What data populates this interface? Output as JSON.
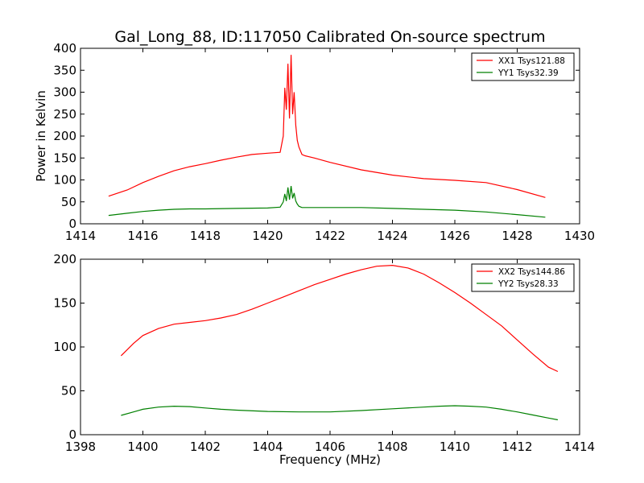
{
  "figure": {
    "title": "Gal_Long_88, ID:117050 Calibrated On-source spectrum",
    "ylabel": "Power in Kelvin",
    "xlabel": "Frequency (MHz)"
  },
  "chart_data": [
    {
      "type": "line",
      "title": "Gal_Long_88, ID:117050 Calibrated On-source spectrum",
      "xlabel": "",
      "ylabel": "Power in Kelvin",
      "xlim": [
        1414,
        1430
      ],
      "ylim": [
        0,
        400
      ],
      "xticks": [
        1414,
        1416,
        1418,
        1420,
        1422,
        1424,
        1426,
        1428,
        1430
      ],
      "yticks": [
        0,
        50,
        100,
        150,
        200,
        250,
        300,
        350,
        400
      ],
      "grid": false,
      "legend": "top-right",
      "series": [
        {
          "name": "XX1 Tsys121.88",
          "color": "#ff0000",
          "x": [
            1414.9,
            1415.5,
            1416.0,
            1416.5,
            1417.0,
            1417.5,
            1418.0,
            1418.5,
            1419.0,
            1419.5,
            1420.0,
            1420.4,
            1420.5,
            1420.55,
            1420.6,
            1420.65,
            1420.7,
            1420.75,
            1420.8,
            1420.85,
            1420.9,
            1420.95,
            1421.0,
            1421.1,
            1421.2,
            1421.5,
            1422.0,
            1423.0,
            1424.0,
            1425.0,
            1426.0,
            1427.0,
            1428.0,
            1428.9
          ],
          "values": [
            63,
            77,
            94,
            108,
            121,
            130,
            137,
            145,
            152,
            158,
            161,
            163,
            200,
            310,
            260,
            365,
            240,
            385,
            250,
            300,
            225,
            190,
            175,
            158,
            155,
            150,
            140,
            123,
            111,
            103,
            99,
            94,
            78,
            60
          ]
        },
        {
          "name": "YY1 Tsys32.39",
          "color": "#008000",
          "x": [
            1414.9,
            1415.5,
            1416.0,
            1416.5,
            1417.0,
            1417.5,
            1418.0,
            1419.0,
            1420.0,
            1420.4,
            1420.5,
            1420.55,
            1420.6,
            1420.65,
            1420.7,
            1420.75,
            1420.8,
            1420.85,
            1420.9,
            1420.95,
            1421.0,
            1421.1,
            1421.2,
            1422.0,
            1423.0,
            1424.0,
            1425.0,
            1426.0,
            1427.0,
            1428.0,
            1428.9
          ],
          "values": [
            19,
            24,
            28,
            31,
            33,
            34,
            34,
            35,
            36,
            38,
            50,
            68,
            52,
            83,
            55,
            86,
            58,
            70,
            52,
            45,
            40,
            37,
            37,
            37,
            37,
            35,
            33,
            31,
            27,
            21,
            15
          ]
        }
      ]
    },
    {
      "type": "line",
      "title": "",
      "xlabel": "Frequency (MHz)",
      "ylabel": "",
      "xlim": [
        1398,
        1414
      ],
      "ylim": [
        0,
        200
      ],
      "xticks": [
        1398,
        1400,
        1402,
        1404,
        1406,
        1408,
        1410,
        1412,
        1414
      ],
      "yticks": [
        0,
        50,
        100,
        150,
        200
      ],
      "grid": false,
      "legend": "top-right",
      "series": [
        {
          "name": "XX2 Tsys144.86",
          "color": "#ff0000",
          "x": [
            1399.3,
            1399.7,
            1400.0,
            1400.5,
            1401.0,
            1401.5,
            1402.0,
            1402.5,
            1403.0,
            1403.5,
            1404.0,
            1404.5,
            1405.0,
            1405.5,
            1406.0,
            1406.5,
            1407.0,
            1407.5,
            1408.0,
            1408.5,
            1409.0,
            1409.5,
            1410.0,
            1410.5,
            1411.0,
            1411.5,
            1412.0,
            1412.5,
            1413.0,
            1413.3
          ],
          "values": [
            90,
            104,
            113,
            121,
            126,
            128,
            130,
            133,
            137,
            143,
            150,
            157,
            164,
            171,
            177,
            183,
            188,
            192,
            193,
            190,
            183,
            173,
            162,
            150,
            137,
            124,
            108,
            92,
            77,
            72
          ]
        },
        {
          "name": "YY2 Tsys28.33",
          "color": "#008000",
          "x": [
            1399.3,
            1399.7,
            1400.0,
            1400.5,
            1401.0,
            1401.5,
            1402.0,
            1402.5,
            1403.0,
            1404.0,
            1405.0,
            1406.0,
            1407.0,
            1408.0,
            1409.0,
            1409.5,
            1410.0,
            1410.5,
            1411.0,
            1411.5,
            1412.0,
            1412.5,
            1413.0,
            1413.3
          ],
          "values": [
            22,
            26,
            29,
            31.5,
            32.5,
            32,
            30.5,
            29,
            28,
            26.5,
            26,
            26,
            27.5,
            29.5,
            31.5,
            32.5,
            33,
            32.5,
            31.5,
            29,
            26,
            22.5,
            19,
            17
          ]
        }
      ]
    }
  ]
}
